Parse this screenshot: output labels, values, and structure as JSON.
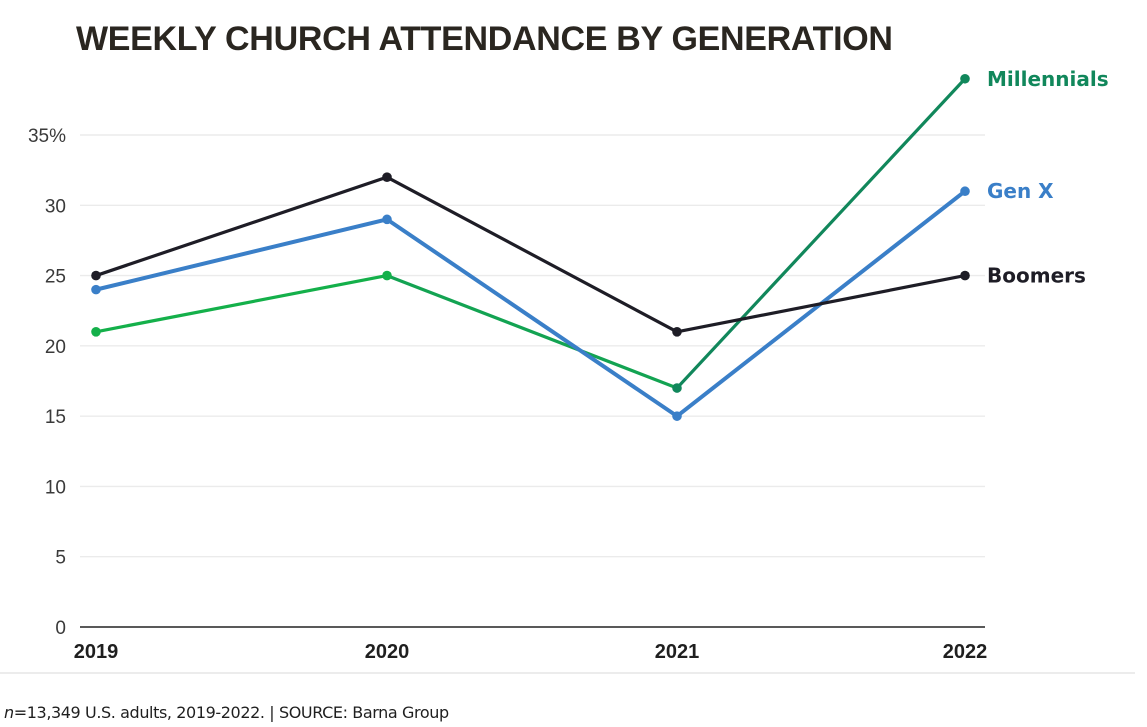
{
  "chart_data": {
    "type": "line",
    "title": "WEEKLY CHURCH ATTENDANCE BY GENERATION",
    "xlabel": "",
    "ylabel": "",
    "x": [
      "2019",
      "2020",
      "2021",
      "2022"
    ],
    "ylim": [
      0,
      35
    ],
    "yticks": [
      0,
      5,
      10,
      15,
      20,
      25,
      30,
      35
    ],
    "ytick_labels": [
      "0",
      "5",
      "10",
      "15",
      "20",
      "25",
      "30",
      "35%"
    ],
    "grid": true,
    "legend": "inline-right",
    "series": [
      {
        "name": "Millennials",
        "color": "#11875b",
        "values": [
          21,
          25,
          17,
          39
        ]
      },
      {
        "name": "Gen X",
        "color": "#3a7fc8",
        "values": [
          24,
          29,
          15,
          31
        ]
      },
      {
        "name": "Boomers",
        "color": "#1e1d26",
        "values": [
          25,
          32,
          21,
          25
        ]
      }
    ],
    "series_colors_early": {
      "Millennials": "#14b04a"
    }
  },
  "footer": {
    "n_prefix": "n",
    "text": "=13,349 U.S. adults, 2019-2022. | SOURCE: Barna Group"
  }
}
